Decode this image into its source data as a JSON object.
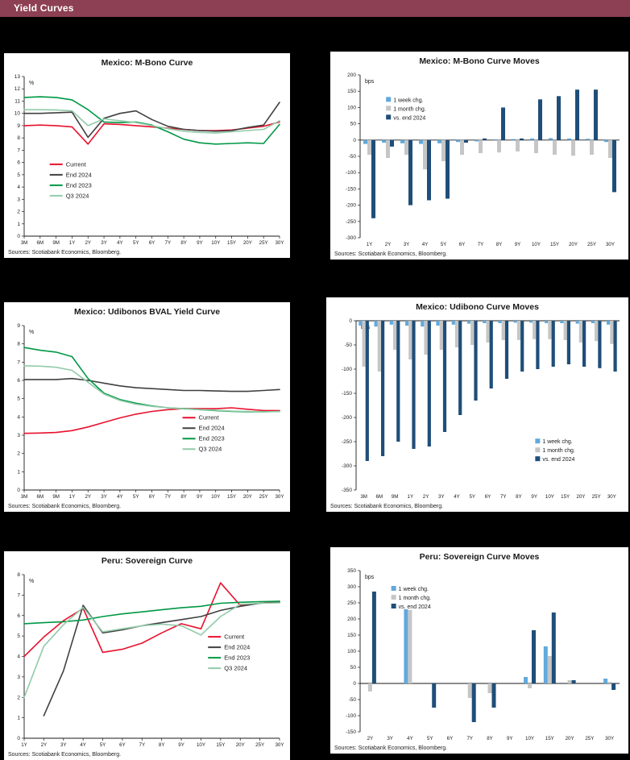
{
  "page": {
    "title": "Yield Curves",
    "source": "Sources: Scotiabank Economics, Bloomberg."
  },
  "colors": {
    "header_bg": "#8d4053",
    "page_bg": "#000000",
    "current_red": "#e8112d",
    "end2024_gray": "#404040",
    "end2023_green": "#009845",
    "q32024_lightgreen": "#92cbaa",
    "week_blue": "#62a9dc",
    "month_gray": "#c6c6c6",
    "vsend_navy": "#1f4e79"
  },
  "chart_data": [
    {
      "type": "line",
      "title": "Mexico: M-Bono Curve",
      "ylabel": "%",
      "ylim": [
        0,
        13
      ],
      "ystep": 1,
      "legend": {
        "x": 0.1,
        "y": 0.55
      },
      "categories": [
        "3M",
        "6M",
        "9M",
        "1Y",
        "2Y",
        "3Y",
        "4Y",
        "5Y",
        "6Y",
        "7Y",
        "8Y",
        "9Y",
        "10Y",
        "15Y",
        "20Y",
        "25Y",
        "30Y"
      ],
      "series": [
        {
          "name": "Current",
          "color": "#e8112d",
          "values": [
            9.0,
            9.05,
            9.0,
            8.9,
            7.5,
            9.15,
            9.1,
            9.0,
            8.9,
            8.8,
            8.7,
            8.6,
            8.6,
            8.65,
            8.8,
            8.95,
            9.3
          ]
        },
        {
          "name": "End 2024",
          "color": "#404040",
          "values": [
            10.0,
            10.0,
            10.05,
            10.1,
            8.05,
            9.6,
            10.0,
            10.2,
            9.5,
            8.95,
            8.7,
            8.6,
            8.55,
            8.6,
            8.85,
            9.05,
            10.9
          ]
        },
        {
          "name": "End 2023",
          "color": "#009845",
          "values": [
            11.3,
            11.35,
            11.3,
            11.1,
            10.3,
            9.3,
            9.25,
            9.3,
            9.05,
            8.5,
            7.9,
            7.6,
            7.5,
            7.55,
            7.6,
            7.55,
            9.1
          ]
        },
        {
          "name": "Q3 2024",
          "color": "#92cbaa",
          "values": [
            10.3,
            10.3,
            10.28,
            10.2,
            9.0,
            9.55,
            9.4,
            9.25,
            9.0,
            8.75,
            8.55,
            8.45,
            8.4,
            8.5,
            8.6,
            8.7,
            9.4
          ]
        }
      ]
    },
    {
      "type": "bar",
      "title": "Mexico: M-Bono Curve Moves",
      "ylabel": "bps",
      "ylim": [
        -300,
        200
      ],
      "ystep": 50,
      "legend": {
        "x": 0.1,
        "y": 0.16
      },
      "categories": [
        "1Y",
        "2Y",
        "3Y",
        "4Y",
        "5Y",
        "6Y",
        "7Y",
        "8Y",
        "9Y",
        "10Y",
        "15Y",
        "20Y",
        "25Y",
        "30Y"
      ],
      "series": [
        {
          "name": "1 week chg.",
          "color": "#62a9dc",
          "values": [
            -12,
            -8,
            -10,
            -12,
            -10,
            -6,
            -4,
            2,
            3,
            5,
            6,
            5,
            4,
            -6
          ]
        },
        {
          "name": "1 month chg.",
          "color": "#c6c6c6",
          "values": [
            -45,
            -55,
            -45,
            -90,
            -65,
            -45,
            -40,
            -38,
            -35,
            -40,
            -45,
            -48,
            -45,
            -55
          ]
        },
        {
          "name": "vs. end 2024",
          "color": "#1f4e79",
          "values": [
            -240,
            -20,
            -200,
            -185,
            -180,
            -8,
            5,
            100,
            5,
            125,
            135,
            155,
            155,
            -160
          ]
        }
      ]
    },
    {
      "type": "line",
      "title": "Mexico: Udibonos BVAL Yield Curve",
      "ylabel": "%",
      "ylim": [
        0,
        9
      ],
      "ystep": 1,
      "legend": {
        "x": 0.62,
        "y": 0.56
      },
      "categories": [
        "3M",
        "6M",
        "9M",
        "1Y",
        "2Y",
        "3Y",
        "4Y",
        "5Y",
        "6Y",
        "7Y",
        "8Y",
        "9Y",
        "10Y",
        "15Y",
        "20Y",
        "25Y",
        "30Y"
      ],
      "series": [
        {
          "name": "Current",
          "color": "#e8112d",
          "values": [
            3.1,
            3.12,
            3.15,
            3.25,
            3.45,
            3.7,
            3.95,
            4.15,
            4.3,
            4.4,
            4.45,
            4.45,
            4.45,
            4.5,
            4.42,
            4.35,
            4.35
          ]
        },
        {
          "name": "End 2024",
          "color": "#404040",
          "values": [
            6.05,
            6.05,
            6.05,
            6.1,
            6.0,
            5.85,
            5.7,
            5.6,
            5.55,
            5.5,
            5.45,
            5.45,
            5.42,
            5.4,
            5.4,
            5.45,
            5.5
          ]
        },
        {
          "name": "End 2023",
          "color": "#009845",
          "values": [
            7.8,
            7.65,
            7.55,
            7.3,
            6.1,
            5.3,
            4.95,
            4.75,
            4.6,
            4.5,
            4.45,
            4.4,
            4.35,
            4.3,
            4.28,
            4.28,
            4.3
          ]
        },
        {
          "name": "Q3 2024",
          "color": "#92cbaa",
          "values": [
            6.8,
            6.78,
            6.72,
            6.55,
            5.9,
            5.25,
            4.9,
            4.7,
            4.58,
            4.5,
            4.44,
            4.4,
            4.37,
            4.32,
            4.3,
            4.28,
            4.3
          ]
        }
      ]
    },
    {
      "type": "bar",
      "title": "Mexico: Udibono Curve Moves",
      "ylabel": "bps",
      "ylim": [
        -350,
        0
      ],
      "ystep": 50,
      "legend": {
        "x": 0.68,
        "y": 0.72
      },
      "categories": [
        "3M",
        "6M",
        "9M",
        "1Y",
        "2Y",
        "3Y",
        "4Y",
        "5Y",
        "6Y",
        "7Y",
        "8Y",
        "9Y",
        "10Y",
        "15Y",
        "20Y",
        "25Y",
        "30Y"
      ],
      "series": [
        {
          "name": "1 week chg.",
          "color": "#62a9dc",
          "values": [
            -10,
            -12,
            -8,
            -10,
            -12,
            -10,
            -8,
            -6,
            -5,
            -5,
            -4,
            -4,
            -5,
            -5,
            -6,
            -5,
            -8
          ]
        },
        {
          "name": "1 month chg.",
          "color": "#c6c6c6",
          "values": [
            -95,
            -105,
            -60,
            -80,
            -70,
            -60,
            -55,
            -50,
            -45,
            -40,
            -40,
            -38,
            -38,
            -40,
            -45,
            -42,
            -48
          ]
        },
        {
          "name": "vs. end 2024",
          "color": "#1f4e79",
          "values": [
            -290,
            -280,
            -250,
            -265,
            -260,
            -230,
            -195,
            -165,
            -140,
            -120,
            -105,
            -100,
            -95,
            -90,
            -95,
            -98,
            -105
          ]
        }
      ]
    },
    {
      "type": "line",
      "title": "Peru: Sovereign Curve",
      "ylabel": "%",
      "ylim": [
        0,
        8
      ],
      "ystep": 1,
      "legend": {
        "x": 0.72,
        "y": 0.38
      },
      "categories": [
        "1Y",
        "2Y",
        "3Y",
        "4Y",
        "5Y",
        "6Y",
        "7Y",
        "8Y",
        "9Y",
        "10Y",
        "15Y",
        "20Y",
        "25Y",
        "30Y"
      ],
      "series": [
        {
          "name": "Current",
          "color": "#e8112d",
          "values": [
            4.0,
            4.95,
            5.75,
            6.35,
            4.2,
            4.35,
            4.65,
            5.15,
            5.6,
            5.35,
            7.6,
            6.5,
            6.6,
            6.7
          ]
        },
        {
          "name": "End 2024",
          "color": "#404040",
          "values": [
            null,
            1.1,
            3.3,
            6.5,
            5.15,
            5.3,
            5.5,
            5.65,
            5.8,
            5.95,
            6.25,
            6.45,
            6.6,
            6.65
          ]
        },
        {
          "name": "End 2023",
          "color": "#009845",
          "values": [
            5.6,
            5.65,
            5.7,
            5.78,
            5.95,
            6.08,
            6.18,
            6.28,
            6.38,
            6.45,
            6.6,
            6.65,
            6.68,
            6.7
          ]
        },
        {
          "name": "Q3 2024",
          "color": "#92cbaa",
          "values": [
            2.0,
            4.5,
            5.55,
            6.4,
            5.2,
            5.35,
            5.5,
            5.58,
            5.5,
            5.05,
            5.95,
            6.55,
            6.6,
            6.62
          ]
        }
      ]
    },
    {
      "type": "bar",
      "title": "Peru: Sovereign Curve Moves",
      "ylabel": "bps",
      "ylim": [
        -150,
        350
      ],
      "ystep": 50,
      "legend": {
        "x": 0.12,
        "y": 0.12
      },
      "categories": [
        "2Y",
        "3Y",
        "4Y",
        "5Y",
        "6Y",
        "7Y",
        "8Y",
        "9Y",
        "10Y",
        "15Y",
        "20Y",
        "25Y",
        "30Y"
      ],
      "series": [
        {
          "name": "1 week chg.",
          "color": "#62a9dc",
          "values": [
            0,
            0,
            230,
            0,
            0,
            0,
            0,
            0,
            20,
            115,
            0,
            0,
            15
          ]
        },
        {
          "name": "1 month chg.",
          "color": "#c6c6c6",
          "values": [
            -25,
            0,
            228,
            0,
            0,
            -45,
            -30,
            0,
            -15,
            85,
            10,
            0,
            5
          ]
        },
        {
          "name": "vs. end 2024",
          "color": "#1f4e79",
          "values": [
            285,
            0,
            0,
            -75,
            0,
            -120,
            -75,
            0,
            165,
            220,
            10,
            0,
            -20
          ]
        }
      ]
    }
  ]
}
